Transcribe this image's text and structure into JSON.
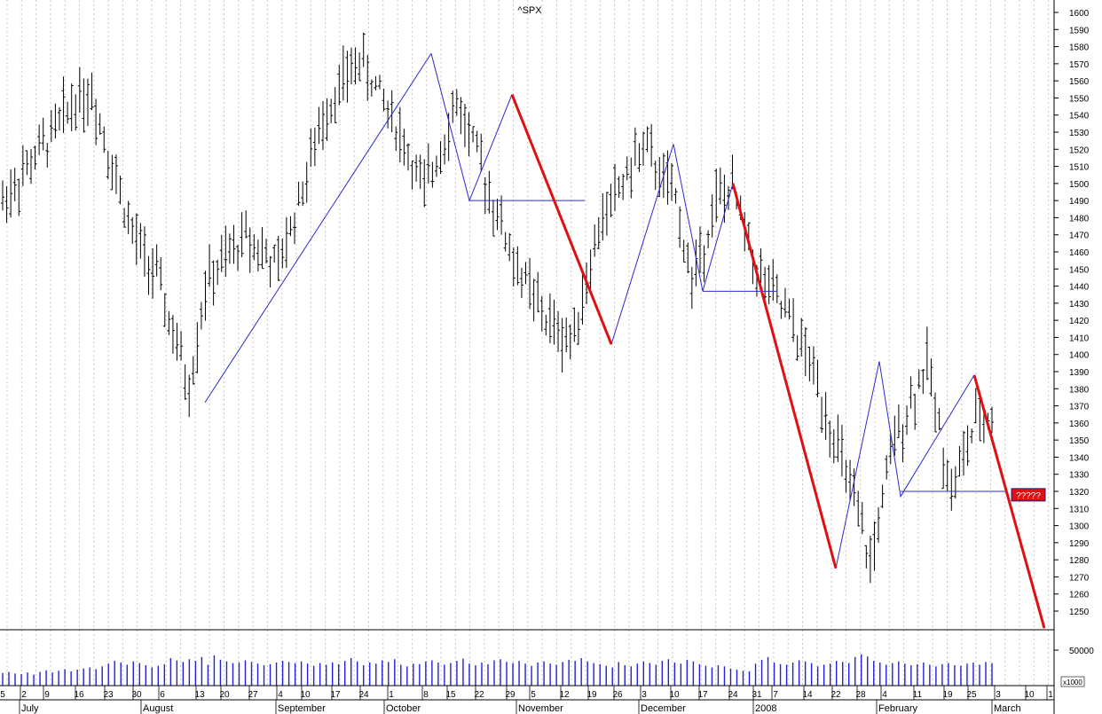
{
  "chart_data": {
    "type": "ohlc",
    "title": "^SPX",
    "y_axis": {
      "ticks": [
        1250,
        1260,
        1270,
        1280,
        1290,
        1300,
        1310,
        1320,
        1330,
        1340,
        1350,
        1360,
        1370,
        1380,
        1390,
        1400,
        1410,
        1420,
        1430,
        1440,
        1450,
        1460,
        1470,
        1480,
        1490,
        1500,
        1510,
        1520,
        1530,
        1540,
        1550,
        1560,
        1570,
        1580,
        1590,
        1600
      ],
      "range": [
        1240,
        1605
      ],
      "side": "right"
    },
    "x_axis": {
      "day_labels": [
        "5",
        "2",
        "9",
        "16",
        "23",
        "30",
        "6",
        "13",
        "20",
        "27",
        "4",
        "10",
        "17",
        "24",
        "1",
        "8",
        "15",
        "22",
        "29",
        "5",
        "12",
        "19",
        "26",
        "3",
        "10",
        "17",
        "24",
        "31",
        "7",
        "14",
        "22",
        "28",
        "4",
        "11",
        "19",
        "25",
        "3",
        "10",
        "1"
      ],
      "month_labels": [
        "July",
        "August",
        "September",
        "October",
        "November",
        "December",
        "2008",
        "February",
        "March"
      ]
    },
    "volume": {
      "tick_label": "50000",
      "unit_label": "x1000",
      "values": [
        23,
        25,
        22,
        21,
        24,
        20,
        25,
        28,
        24,
        27,
        30,
        26,
        29,
        31,
        33,
        30,
        35,
        40,
        45,
        42,
        38,
        44,
        41,
        37,
        33,
        36,
        39,
        50,
        46,
        43,
        48,
        45,
        52,
        38,
        55,
        47,
        44,
        41,
        42,
        46,
        43,
        40,
        37,
        39,
        42,
        45,
        43,
        41,
        44,
        40,
        36,
        41,
        38,
        42,
        39,
        45,
        50,
        44,
        37,
        42,
        40,
        46,
        43,
        48,
        38,
        35,
        40,
        39,
        44,
        46,
        42,
        38,
        41,
        45,
        49,
        40,
        37,
        42,
        39,
        46,
        48,
        43,
        41,
        45,
        40,
        36,
        42,
        44,
        40,
        38,
        43,
        47,
        45,
        50,
        44,
        41,
        39,
        36,
        33,
        43,
        37,
        35,
        40,
        44,
        41,
        38,
        45,
        48,
        42,
        40,
        47,
        44,
        39,
        36,
        33,
        37,
        35,
        31,
        29,
        27,
        26,
        40,
        47,
        52,
        42,
        39,
        38,
        42,
        46,
        44,
        41,
        35,
        38,
        40,
        45,
        43,
        41,
        52,
        57,
        53,
        45,
        42,
        38,
        41,
        44,
        40,
        37,
        39,
        42,
        38,
        35,
        39,
        41,
        37,
        36,
        40,
        42,
        38,
        43,
        41
      ],
      "spike_index": 38
    },
    "series": {
      "start_price": 1490,
      "price_path_knots": [
        [
          0,
          1490
        ],
        [
          12,
          1528
        ],
        [
          18,
          1550
        ],
        [
          22,
          1553
        ],
        [
          32,
          1470
        ],
        [
          38,
          1445
        ],
        [
          46,
          1380
        ],
        [
          50,
          1440
        ],
        [
          60,
          1470
        ],
        [
          68,
          1450
        ],
        [
          80,
          1545
        ],
        [
          88,
          1573
        ],
        [
          96,
          1540
        ],
        [
          104,
          1495
        ],
        [
          112,
          1548
        ],
        [
          118,
          1510
        ],
        [
          126,
          1455
        ],
        [
          134,
          1420
        ],
        [
          140,
          1408
        ],
        [
          148,
          1480
        ],
        [
          158,
          1522
        ],
        [
          166,
          1490
        ],
        [
          170,
          1442
        ],
        [
          176,
          1490
        ],
        [
          180,
          1496
        ],
        [
          186,
          1450
        ],
        [
          194,
          1420
        ],
        [
          200,
          1390
        ],
        [
          208,
          1330
        ],
        [
          214,
          1278
        ],
        [
          220,
          1350
        ],
        [
          228,
          1395
        ],
        [
          234,
          1320
        ],
        [
          240,
          1360
        ],
        [
          248,
          1370
        ],
        [
          256,
          1335
        ]
      ]
    },
    "trendlines": [
      {
        "color": "#2a2ad0",
        "points": [
          [
            "2007-08-16",
            1372
          ],
          [
            "2007-10-11",
            1576
          ]
        ]
      },
      {
        "color": "#2a2ad0",
        "points": [
          [
            "2007-10-11",
            1576
          ],
          [
            "2007-10-22",
            1490
          ],
          [
            "2007-10-31",
            1552
          ]
        ]
      },
      {
        "color": "#2a2ad0",
        "points": [
          [
            "2007-10-22",
            1490
          ],
          [
            "2007-11-19",
            1490
          ]
        ]
      },
      {
        "color": "#2a2ad0",
        "points": [
          [
            "2007-11-26",
            1406
          ],
          [
            "2007-12-11",
            1523
          ],
          [
            "2007-12-18",
            1437
          ],
          [
            "2007-12-26",
            1500
          ]
        ]
      },
      {
        "color": "#2a2ad0",
        "points": [
          [
            "2007-12-18",
            1437
          ],
          [
            "2008-01-07",
            1437
          ]
        ]
      },
      {
        "color": "#2a2ad0",
        "points": [
          [
            "2008-01-23",
            1275
          ],
          [
            "2008-02-01",
            1396
          ],
          [
            "2008-02-07",
            1317
          ],
          [
            "2008-02-27",
            1388
          ]
        ]
      },
      {
        "color": "#2a2ad0",
        "points": [
          [
            "2008-02-07",
            1320
          ],
          [
            "2008-03-06",
            1320
          ]
        ]
      },
      {
        "color": "#e01010",
        "width": 3,
        "points": [
          [
            "2007-10-31",
            1552
          ],
          [
            "2007-11-26",
            1406
          ]
        ]
      },
      {
        "color": "#e01010",
        "width": 3,
        "points": [
          [
            "2007-12-26",
            1500
          ],
          [
            "2008-01-23",
            1275
          ]
        ]
      },
      {
        "color": "#e01010",
        "width": 3,
        "points": [
          [
            "2008-02-27",
            1388
          ],
          [
            "2008-03-14",
            1240
          ]
        ]
      }
    ],
    "price_marker": {
      "label": "?????",
      "value": 1318,
      "color": "#e01010"
    },
    "grid": {
      "vertical_dotted": true,
      "color": "#c8c8c8"
    }
  }
}
